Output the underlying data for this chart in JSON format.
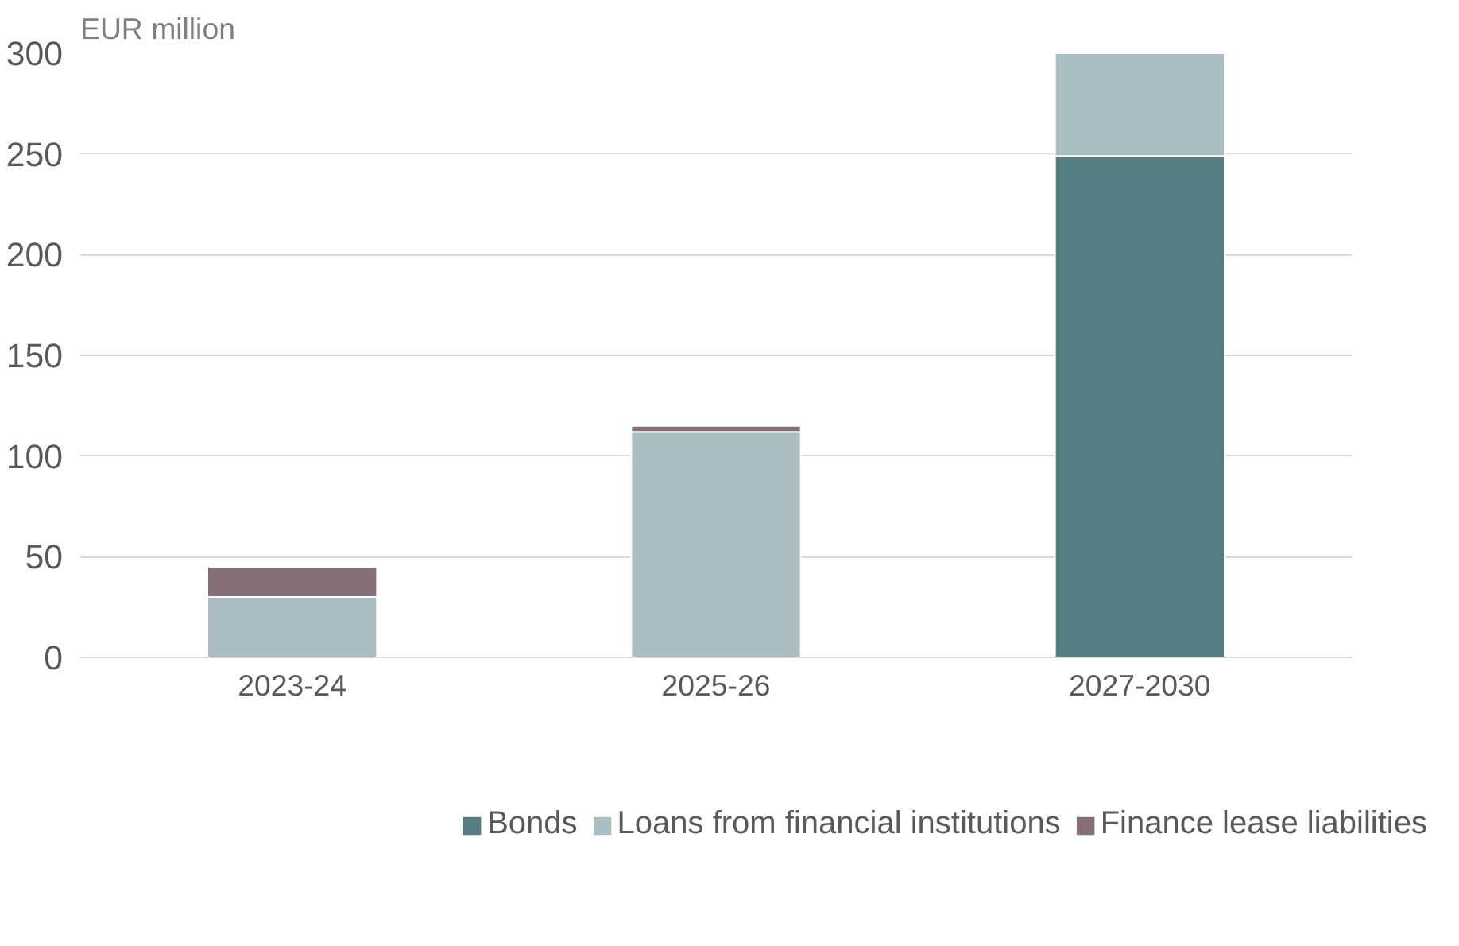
{
  "chart_data": {
    "type": "bar",
    "stacked": true,
    "ylabel": "EUR million",
    "categories": [
      "2023-24",
      "2025-26",
      "2027-2030"
    ],
    "series": [
      {
        "name": "Bonds",
        "color": "#557e83",
        "values": [
          0,
          0,
          249
        ]
      },
      {
        "name": "Loans from financial institutions",
        "color": "#abbfc2",
        "values": [
          30,
          112,
          51
        ]
      },
      {
        "name": "Finance lease liabilities",
        "color": "#856f77",
        "values": [
          15,
          3,
          0
        ]
      }
    ],
    "ylim": [
      0,
      300
    ],
    "yticks": [
      0,
      50,
      100,
      150,
      200,
      250,
      300
    ],
    "grid": "y",
    "legend": "bottom"
  }
}
